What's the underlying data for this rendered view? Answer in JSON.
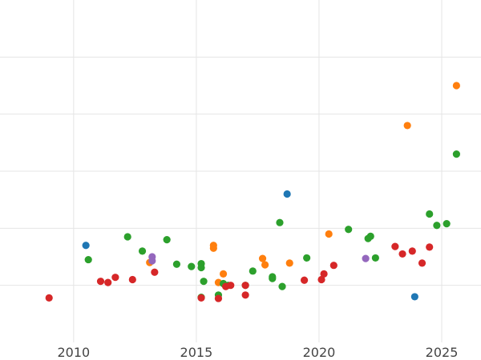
{
  "chart_data": {
    "type": "scatter",
    "title": "",
    "xlabel": "",
    "ylabel": "",
    "xlim": [
      2007.0,
      2026.6
    ],
    "ylim": [
      0,
      6
    ],
    "x_ticks": [
      2010,
      2015,
      2020,
      2025
    ],
    "x_tick_labels": [
      "2010",
      "2015",
      "2020",
      "2025"
    ],
    "y_ticks": [
      1,
      2,
      3,
      4,
      5
    ],
    "y_tick_labels": [],
    "grid": true,
    "legend": "none",
    "series": [
      {
        "color": "#1f77b4",
        "points": [
          {
            "x": 2010.5,
            "y": 1.7
          },
          {
            "x": 2018.7,
            "y": 2.6
          },
          {
            "x": 2023.9,
            "y": 0.8
          }
        ]
      },
      {
        "color": "#ff7f0e",
        "points": [
          {
            "x": 2013.1,
            "y": 1.4
          },
          {
            "x": 2015.7,
            "y": 1.7
          },
          {
            "x": 2015.7,
            "y": 1.65
          },
          {
            "x": 2015.9,
            "y": 1.05
          },
          {
            "x": 2016.1,
            "y": 1.2
          },
          {
            "x": 2017.7,
            "y": 1.47
          },
          {
            "x": 2017.8,
            "y": 1.36
          },
          {
            "x": 2018.8,
            "y": 1.39
          },
          {
            "x": 2020.4,
            "y": 1.9
          },
          {
            "x": 2023.6,
            "y": 3.8
          },
          {
            "x": 2025.6,
            "y": 4.5
          }
        ]
      },
      {
        "color": "#2ca02c",
        "points": [
          {
            "x": 2010.6,
            "y": 1.45
          },
          {
            "x": 2012.2,
            "y": 1.85
          },
          {
            "x": 2012.8,
            "y": 1.6
          },
          {
            "x": 2013.8,
            "y": 1.8
          },
          {
            "x": 2014.2,
            "y": 1.37
          },
          {
            "x": 2014.8,
            "y": 1.33
          },
          {
            "x": 2015.2,
            "y": 1.38
          },
          {
            "x": 2015.2,
            "y": 1.31
          },
          {
            "x": 2015.3,
            "y": 1.07
          },
          {
            "x": 2015.2,
            "y": 0.79
          },
          {
            "x": 2015.9,
            "y": 0.83
          },
          {
            "x": 2016.1,
            "y": 1.03
          },
          {
            "x": 2016.3,
            "y": 1.0
          },
          {
            "x": 2017.0,
            "y": 1.0
          },
          {
            "x": 2017.3,
            "y": 1.25
          },
          {
            "x": 2018.1,
            "y": 1.12
          },
          {
            "x": 2018.1,
            "y": 1.15
          },
          {
            "x": 2018.4,
            "y": 2.1
          },
          {
            "x": 2018.5,
            "y": 0.98
          },
          {
            "x": 2019.5,
            "y": 1.48
          },
          {
            "x": 2021.2,
            "y": 1.98
          },
          {
            "x": 2022.0,
            "y": 1.82
          },
          {
            "x": 2022.1,
            "y": 1.86
          },
          {
            "x": 2022.3,
            "y": 1.48
          },
          {
            "x": 2024.5,
            "y": 2.25
          },
          {
            "x": 2024.8,
            "y": 2.05
          },
          {
            "x": 2025.2,
            "y": 2.08
          },
          {
            "x": 2025.6,
            "y": 3.3
          }
        ]
      },
      {
        "color": "#d62728",
        "points": [
          {
            "x": 2009.0,
            "y": 0.78
          },
          {
            "x": 2011.1,
            "y": 1.07
          },
          {
            "x": 2011.4,
            "y": 1.05
          },
          {
            "x": 2011.7,
            "y": 1.14
          },
          {
            "x": 2012.4,
            "y": 1.1
          },
          {
            "x": 2013.3,
            "y": 1.23
          },
          {
            "x": 2015.2,
            "y": 0.78
          },
          {
            "x": 2015.9,
            "y": 0.77
          },
          {
            "x": 2016.2,
            "y": 0.98
          },
          {
            "x": 2016.4,
            "y": 1.0
          },
          {
            "x": 2017.0,
            "y": 1.0
          },
          {
            "x": 2017.0,
            "y": 0.83
          },
          {
            "x": 2019.4,
            "y": 1.09
          },
          {
            "x": 2020.1,
            "y": 1.1
          },
          {
            "x": 2020.2,
            "y": 1.2
          },
          {
            "x": 2020.6,
            "y": 1.35
          },
          {
            "x": 2023.1,
            "y": 1.68
          },
          {
            "x": 2023.4,
            "y": 1.55
          },
          {
            "x": 2023.8,
            "y": 1.6
          },
          {
            "x": 2024.2,
            "y": 1.39
          },
          {
            "x": 2024.5,
            "y": 1.67
          }
        ]
      },
      {
        "color": "#9467bd",
        "points": [
          {
            "x": 2013.2,
            "y": 1.5
          },
          {
            "x": 2013.2,
            "y": 1.43
          },
          {
            "x": 2021.9,
            "y": 1.47
          }
        ]
      }
    ]
  }
}
